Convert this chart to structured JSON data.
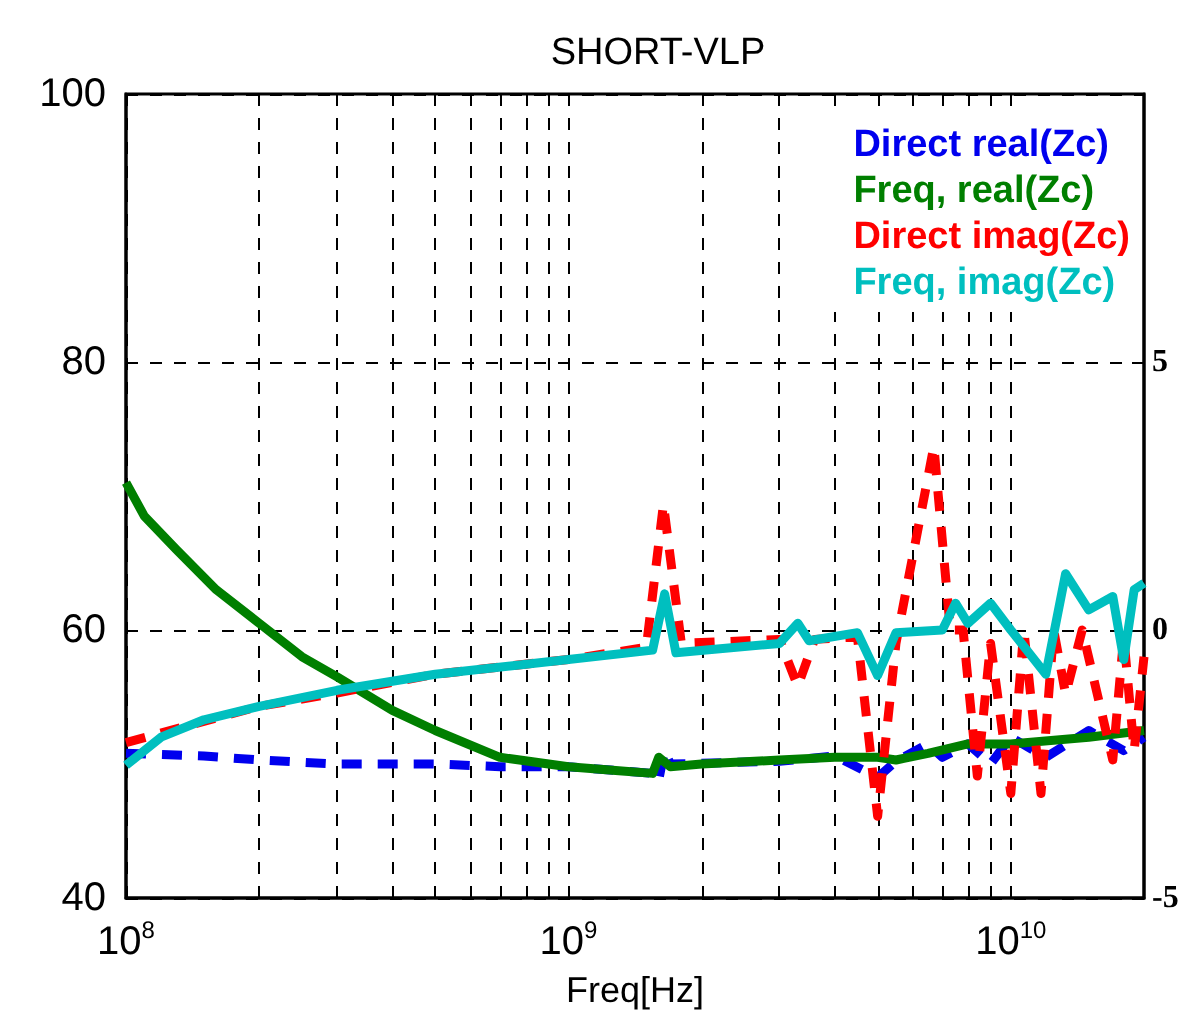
{
  "chart_data": {
    "type": "line",
    "title": "SHORT-VLP",
    "xlabel": "Freq[Hz]",
    "log": "x",
    "grid": true,
    "legend": "top right",
    "marker": "none",
    "xlim": [
      100000000,
      20000000000
    ],
    "xticks": [
      {
        "value": 100000000,
        "label": "10$^{8}$"
      },
      {
        "value": 200000000,
        "label": null
      },
      {
        "value": 300000000,
        "label": null
      },
      {
        "value": 400000000,
        "label": null
      },
      {
        "value": 500000000,
        "label": null
      },
      {
        "value": 600000000,
        "label": null
      },
      {
        "value": 700000000,
        "label": null
      },
      {
        "value": 800000000,
        "label": null
      },
      {
        "value": 900000000,
        "label": null
      },
      {
        "value": 1000000000,
        "label": "10$^{9}$"
      },
      {
        "value": 2000000000,
        "label": null
      },
      {
        "value": 3000000000,
        "label": null
      },
      {
        "value": 4000000000,
        "label": null
      },
      {
        "value": 5000000000,
        "label": null
      },
      {
        "value": 6000000000,
        "label": null
      },
      {
        "value": 7000000000,
        "label": null
      },
      {
        "value": 8000000000,
        "label": null
      },
      {
        "value": 9000000000,
        "label": null
      },
      {
        "value": 10000000000,
        "label": "10$^{10}$"
      }
    ],
    "ylim": [
      40,
      100
    ],
    "yticks": [
      40,
      60,
      80,
      100
    ],
    "y2lim": [
      -5,
      10
    ],
    "y2ticks": [
      -5,
      0,
      5
    ],
    "series": [
      {
        "name": "Direct real(Zc)",
        "color": "#0000ee",
        "line_style": "dashed",
        "x": [
          100000000.0,
          150000000.0,
          200000000.0,
          300000000.0,
          500000000.0,
          700000000.0,
          1000000000.0,
          1550000000.0,
          1600000000.0,
          1650000000.0,
          1700000000.0,
          3000000000.0,
          4000000000.0,
          5000000000.0,
          5500000000.0,
          6500000000.0,
          7000000000.0,
          8000000000.0,
          9000000000.0,
          10000000000.0,
          12000000000.0,
          15000000000.0,
          18000000000.0,
          20000000000.0
        ],
        "values": [
          50.8,
          50.6,
          50.3,
          50.0,
          50.0,
          49.8,
          49.8,
          49.3,
          48.8,
          51,
          50,
          50.2,
          50.6,
          49,
          50.2,
          51.5,
          50.5,
          51.5,
          50,
          52,
          50.5,
          52.5,
          51,
          52
        ]
      },
      {
        "name": "Freq, real(Zc)",
        "color": "#007f00",
        "line_style": "solid",
        "x": [
          100000000.0,
          110000000.0,
          130000000.0,
          160000000.0,
          200000000.0,
          250000000.0,
          300000000.0,
          400000000.0,
          500000000.0,
          700000000.0,
          1000000000.0,
          1300000000.0,
          1550000000.0,
          1600000000.0,
          1700000000.0,
          2000000000.0,
          3000000000.0,
          4000000000.0,
          5000000000.0,
          5500000000.0,
          6500000000.0,
          8000000000.0,
          10000000000.0,
          15000000000.0,
          20000000000.0
        ],
        "values": [
          71,
          68.5,
          66,
          63,
          60.5,
          58,
          56.5,
          54,
          52.5,
          50.5,
          49.8,
          49.5,
          49.3,
          50.5,
          49.8,
          50,
          50.3,
          50.5,
          50.5,
          50.3,
          50.8,
          51.5,
          51.5,
          52,
          52.5
        ]
      },
      {
        "name": "Direct imag(Zc)",
        "color": "#ff0000",
        "line_style": "dashed",
        "x": [
          100000000.0,
          200000000.0,
          300000000.0,
          500000000.0,
          1000000000.0,
          1500000000.0,
          1640000000.0,
          1800000000.0,
          3000000000.0,
          3300000000.0,
          3600000000.0,
          4500000000.0,
          5000000000.0,
          5500000000.0,
          6700000000.0,
          7300000000.0,
          7800000000.0,
          8400000000.0,
          9000000000.0,
          10000000000.0,
          10700000000.0,
          11700000000.0,
          12500000000.0,
          13300000000.0,
          14500000000.0,
          17000000000.0,
          18000000000.0,
          19000000000.0,
          20000000000.0
        ],
        "values": [
          51.6,
          54.3,
          55.3,
          56.7,
          57.8,
          58.7,
          69.4,
          59,
          59.3,
          55.8,
          59.3,
          59.5,
          46.1,
          59,
          73.7,
          60,
          60,
          49.1,
          59,
          47.8,
          60,
          47.8,
          60,
          55.2,
          60,
          50.3,
          59.5,
          51,
          58
        ]
      },
      {
        "name": "Freq, imag(Zc)",
        "color": "#00bfbf",
        "line_style": "solid",
        "x": [
          100000000.0,
          120000000.0,
          150000000.0,
          200000000.0,
          300000000.0,
          500000000.0,
          1000000000.0,
          1550000000.0,
          1650000000.0,
          1750000000.0,
          3000000000.0,
          3300000000.0,
          3500000000.0,
          4500000000.0,
          5000000000.0,
          5500000000.0,
          7000000000.0,
          7500000000.0,
          8000000000.0,
          9000000000.0,
          10000000000.0,
          12000000000.0,
          13300000000.0,
          15000000000.0,
          17000000000.0,
          18000000000.0,
          19000000000.0,
          20000000000.0
        ],
        "values": [
          49.9,
          52,
          53.3,
          54.3,
          55.5,
          56.7,
          57.8,
          58.5,
          62.7,
          58.3,
          59,
          60.5,
          59.2,
          59.8,
          56.6,
          59.8,
          60,
          62,
          60.5,
          62,
          60,
          56.7,
          64.2,
          61.5,
          62.5,
          57.8,
          63,
          63.5
        ]
      }
    ]
  }
}
